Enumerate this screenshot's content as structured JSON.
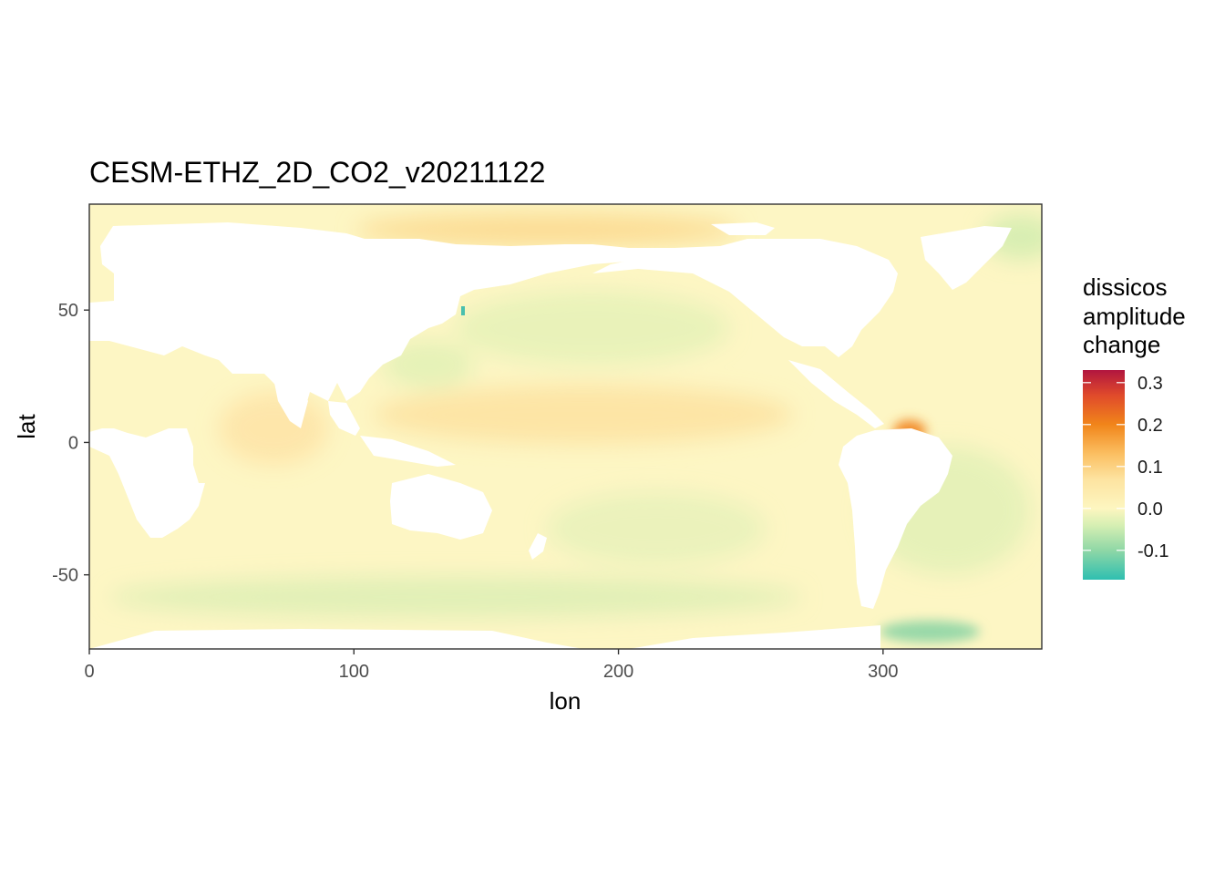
{
  "chart_data": {
    "type": "heatmap",
    "title": "CESM-ETHZ_2D_CO2_v20211122",
    "xlabel": "lon",
    "ylabel": "lat",
    "xlim": [
      0,
      360
    ],
    "ylim": [
      -78,
      90
    ],
    "x_ticks": [
      0,
      100,
      200,
      300
    ],
    "y_ticks": [
      -50,
      0,
      50
    ],
    "x_tick_labels": [
      "0",
      "100",
      "200",
      "300"
    ],
    "y_tick_labels": [
      "-50",
      "0",
      "50"
    ],
    "grid": true,
    "legend": {
      "title_lines": [
        "dissicos",
        "amplitude",
        "change"
      ],
      "placement": "right",
      "range": [
        -0.17,
        0.33
      ],
      "ticks": [
        0.3,
        0.2,
        0.1,
        0.0,
        -0.1
      ],
      "tick_labels": [
        "0.3",
        "0.2",
        "0.1",
        "0.0",
        "-0.1"
      ],
      "palette": [
        "#2ebfb0",
        "#8fd7a6",
        "#d6efb3",
        "#fdf6c0",
        "#fde3a0",
        "#fbbf62",
        "#f1851a",
        "#e04a2b",
        "#b1153f"
      ]
    },
    "notes_values": {
      "ocean_background": 0.0,
      "equatorial_pacific": 0.05,
      "arctic_band": 0.07,
      "southern_ocean": -0.02,
      "weddell_sea": -0.08,
      "amazon_plume": 0.28
    }
  }
}
